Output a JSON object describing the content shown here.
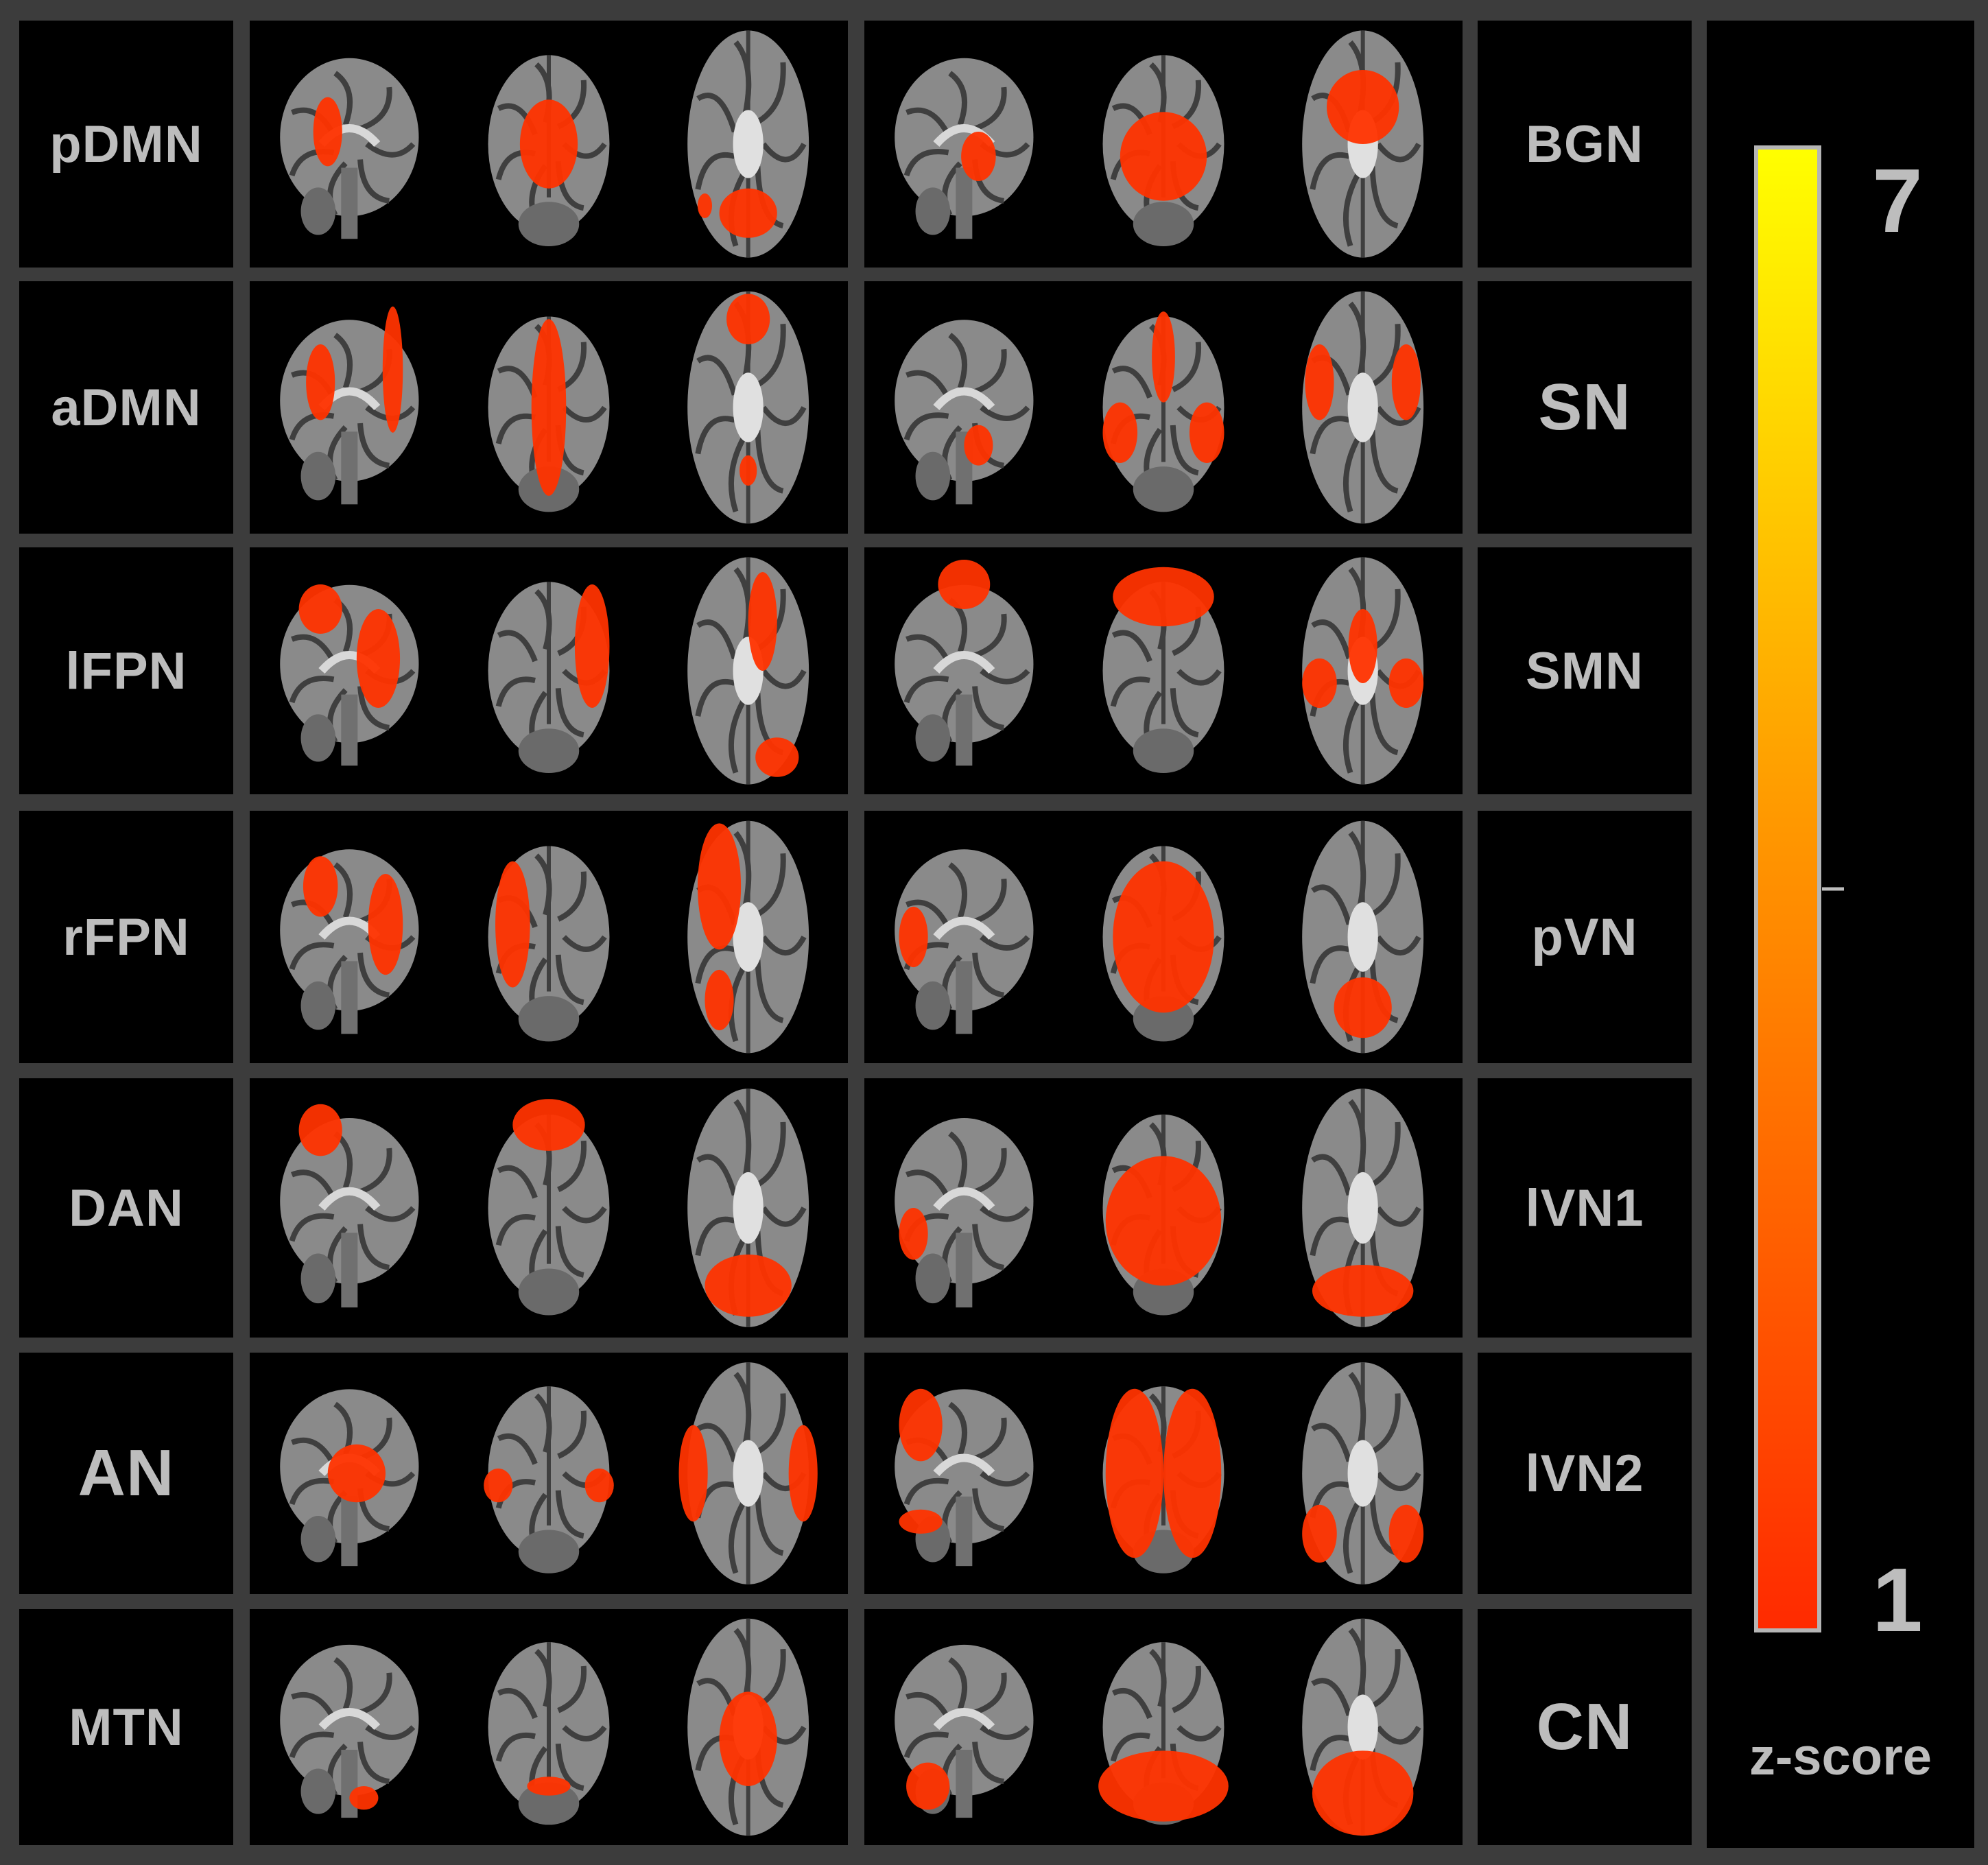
{
  "left_networks": [
    {
      "label": "pDMN"
    },
    {
      "label": "aDMN"
    },
    {
      "label": "lFPN"
    },
    {
      "label": "rFPN"
    },
    {
      "label": "DAN"
    },
    {
      "label": "AN"
    },
    {
      "label": "MTN"
    }
  ],
  "right_networks": [
    {
      "label": "BGN"
    },
    {
      "label": "SN"
    },
    {
      "label": "SMN"
    },
    {
      "label": "pVN"
    },
    {
      "label": "lVN1"
    },
    {
      "label": "lVN2"
    },
    {
      "label": "CN"
    }
  ],
  "colorbar": {
    "label": "z-score",
    "max_label": "7",
    "min_label": "1",
    "max_value": 7,
    "min_value": 1,
    "tick_value": 4,
    "color_high": "#ffff00",
    "color_mid": "#ff9900",
    "color_low": "#ff2a00"
  },
  "colors": {
    "background": "#3c3c3c",
    "panel": "#000000",
    "label_text": "#bdbdbd",
    "brain_fill": "#8a8a8a",
    "brain_sulci": "#3f3f3f",
    "activation": "#ff3300"
  }
}
